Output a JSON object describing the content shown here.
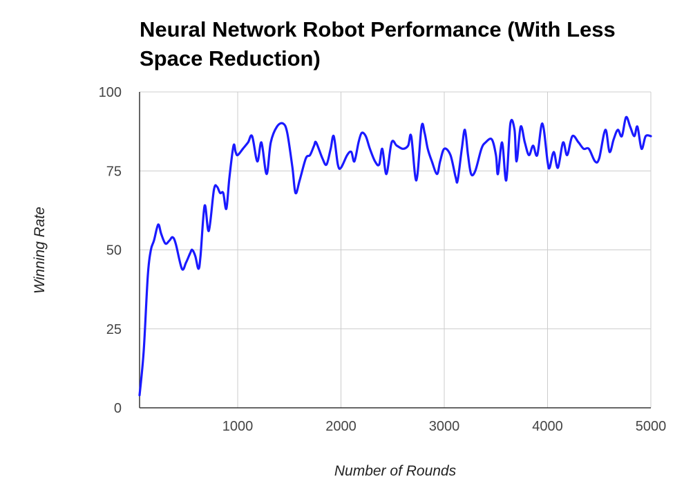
{
  "chart_data": {
    "type": "line",
    "title": "Neural Network Robot Performance (With Less Space Reduction)",
    "xlabel": "Number of Rounds",
    "ylabel": "Winning Rate",
    "xlim": [
      50,
      5000
    ],
    "ylim": [
      0,
      100
    ],
    "x_ticks": [
      1000,
      2000,
      3000,
      4000,
      5000
    ],
    "y_ticks": [
      0,
      25,
      50,
      75,
      100
    ],
    "grid": true,
    "legend": "none",
    "series": [
      {
        "color": "#1a1aff",
        "points": [
          [
            50,
            4
          ],
          [
            90,
            18
          ],
          [
            130,
            42
          ],
          [
            160,
            50
          ],
          [
            190,
            53
          ],
          [
            230,
            58
          ],
          [
            260,
            55
          ],
          [
            300,
            52
          ],
          [
            340,
            53
          ],
          [
            370,
            54
          ],
          [
            400,
            52
          ],
          [
            460,
            44
          ],
          [
            500,
            46
          ],
          [
            540,
            49
          ],
          [
            560,
            50
          ],
          [
            590,
            48
          ],
          [
            620,
            44
          ],
          [
            640,
            48
          ],
          [
            680,
            64
          ],
          [
            720,
            56
          ],
          [
            770,
            69
          ],
          [
            800,
            70
          ],
          [
            830,
            68
          ],
          [
            860,
            68
          ],
          [
            890,
            63
          ],
          [
            920,
            73
          ],
          [
            960,
            83
          ],
          [
            980,
            81
          ],
          [
            1000,
            80
          ],
          [
            1050,
            82
          ],
          [
            1100,
            84
          ],
          [
            1140,
            86
          ],
          [
            1190,
            78
          ],
          [
            1230,
            84
          ],
          [
            1280,
            74
          ],
          [
            1320,
            84
          ],
          [
            1380,
            89
          ],
          [
            1440,
            90
          ],
          [
            1480,
            87
          ],
          [
            1530,
            76
          ],
          [
            1560,
            68
          ],
          [
            1600,
            72
          ],
          [
            1660,
            79
          ],
          [
            1700,
            80
          ],
          [
            1740,
            83
          ],
          [
            1760,
            84
          ],
          [
            1820,
            79
          ],
          [
            1860,
            77
          ],
          [
            1900,
            82
          ],
          [
            1930,
            86
          ],
          [
            1970,
            77
          ],
          [
            2000,
            76
          ],
          [
            2060,
            80
          ],
          [
            2100,
            81
          ],
          [
            2130,
            78
          ],
          [
            2170,
            84
          ],
          [
            2200,
            87
          ],
          [
            2240,
            86
          ],
          [
            2280,
            82
          ],
          [
            2330,
            78
          ],
          [
            2370,
            77
          ],
          [
            2400,
            82
          ],
          [
            2440,
            74
          ],
          [
            2490,
            84
          ],
          [
            2540,
            83
          ],
          [
            2600,
            82
          ],
          [
            2650,
            83
          ],
          [
            2680,
            86
          ],
          [
            2730,
            72
          ],
          [
            2780,
            89
          ],
          [
            2810,
            87
          ],
          [
            2840,
            82
          ],
          [
            2880,
            78
          ],
          [
            2930,
            74
          ],
          [
            2960,
            78
          ],
          [
            3000,
            82
          ],
          [
            3060,
            80
          ],
          [
            3110,
            73
          ],
          [
            3130,
            72
          ],
          [
            3170,
            82
          ],
          [
            3200,
            88
          ],
          [
            3230,
            80
          ],
          [
            3260,
            74
          ],
          [
            3300,
            75
          ],
          [
            3360,
            82
          ],
          [
            3400,
            84
          ],
          [
            3460,
            85
          ],
          [
            3500,
            80
          ],
          [
            3520,
            74
          ],
          [
            3560,
            84
          ],
          [
            3600,
            72
          ],
          [
            3640,
            90
          ],
          [
            3680,
            88
          ],
          [
            3700,
            78
          ],
          [
            3740,
            89
          ],
          [
            3780,
            84
          ],
          [
            3820,
            80
          ],
          [
            3860,
            83
          ],
          [
            3900,
            80
          ],
          [
            3950,
            90
          ],
          [
            4000,
            78
          ],
          [
            4020,
            76
          ],
          [
            4060,
            81
          ],
          [
            4100,
            76
          ],
          [
            4150,
            84
          ],
          [
            4190,
            80
          ],
          [
            4240,
            86
          ],
          [
            4300,
            84
          ],
          [
            4350,
            82
          ],
          [
            4400,
            82
          ],
          [
            4460,
            78
          ],
          [
            4500,
            79
          ],
          [
            4560,
            88
          ],
          [
            4600,
            81
          ],
          [
            4640,
            85
          ],
          [
            4680,
            88
          ],
          [
            4720,
            86
          ],
          [
            4760,
            92
          ],
          [
            4800,
            89
          ],
          [
            4840,
            86
          ],
          [
            4870,
            89
          ],
          [
            4910,
            82
          ],
          [
            4950,
            86
          ],
          [
            5000,
            86
          ]
        ]
      }
    ]
  }
}
